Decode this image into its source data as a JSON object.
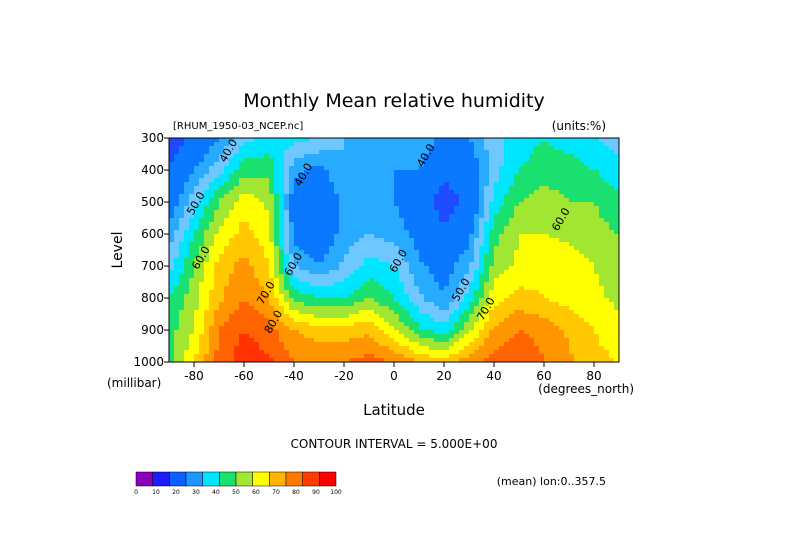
{
  "chart_data": {
    "type": "heatmap",
    "title": "Monthly Mean relative humidity",
    "dataset_label": "[RHUM_1950-03_NCEP.nc]",
    "units_label": "(units:%)",
    "xlabel": "Latitude",
    "x_units": "(degrees_north)",
    "ylabel": "Level",
    "y_units": "(millibar)",
    "xlim": [
      -90,
      90
    ],
    "ylim": [
      1000,
      300
    ],
    "x_ticks": [
      -80,
      -60,
      -40,
      -20,
      0,
      20,
      40,
      60,
      80
    ],
    "y_ticks": [
      300,
      400,
      500,
      600,
      700,
      800,
      900,
      1000
    ],
    "contour_interval_text": "CONTOUR INTERVAL = 5.000E+00",
    "mean_text": "(mean) lon:0..357.5",
    "contour_labels": [
      {
        "text": "40.0",
        "lat": -65,
        "lev": 345
      },
      {
        "text": "40.0",
        "lat": -35,
        "lev": 420
      },
      {
        "text": "40.0",
        "lat": 14,
        "lev": 360
      },
      {
        "text": "50.0",
        "lat": -78,
        "lev": 510
      },
      {
        "text": "60.0",
        "lat": -76,
        "lev": 680
      },
      {
        "text": "60.0",
        "lat": -39,
        "lev": 700
      },
      {
        "text": "60.0",
        "lat": 3,
        "lev": 690
      },
      {
        "text": "60.0",
        "lat": 68,
        "lev": 560
      },
      {
        "text": "50.0",
        "lat": 28,
        "lev": 780
      },
      {
        "text": "70.0",
        "lat": -50,
        "lev": 790
      },
      {
        "text": "70.0",
        "lat": 38,
        "lev": 840
      },
      {
        "text": "80.0",
        "lat": -47,
        "lev": 880
      }
    ],
    "colorbar": {
      "levels": [
        0,
        10,
        20,
        30,
        40,
        50,
        60,
        70,
        80,
        90,
        100
      ],
      "colors": [
        "#8b00bf",
        "#1c1cff",
        "#0a5fff",
        "#1e96ff",
        "#00e5ff",
        "#19e06e",
        "#a0e632",
        "#ffff00",
        "#ffb400",
        "#ff7800",
        "#ff3c00",
        "#ff0000"
      ]
    },
    "color_scale": {
      "interval": 5,
      "bounds": [
        20,
        30,
        40,
        45,
        50,
        55,
        60,
        65,
        70,
        75,
        80,
        85,
        90
      ]
    },
    "rh_field": {
      "lats": [
        -90,
        -80,
        -70,
        -60,
        -50,
        -40,
        -30,
        -20,
        -10,
        0,
        10,
        20,
        30,
        40,
        50,
        60,
        70,
        80,
        90
      ],
      "levels": [
        300,
        400,
        500,
        600,
        700,
        800,
        900,
        1000
      ],
      "values": [
        [
          25,
          32,
          40,
          48,
          52,
          52,
          50,
          45,
          42,
          45,
          45,
          38,
          40,
          48,
          52,
          55,
          52,
          50,
          48
        ],
        [
          30,
          40,
          48,
          58,
          58,
          42,
          38,
          45,
          42,
          40,
          40,
          32,
          35,
          48,
          55,
          58,
          58,
          55,
          52
        ],
        [
          35,
          48,
          60,
          68,
          64,
          36,
          33,
          42,
          43,
          40,
          35,
          26,
          32,
          52,
          60,
          62,
          60,
          60,
          56
        ],
        [
          42,
          55,
          66,
          72,
          67,
          38,
          35,
          42,
          45,
          43,
          38,
          31,
          38,
          58,
          65,
          65,
          64,
          62,
          60
        ],
        [
          48,
          60,
          72,
          77,
          70,
          45,
          40,
          46,
          52,
          50,
          41,
          37,
          44,
          62,
          66,
          68,
          67,
          65,
          63
        ],
        [
          55,
          63,
          74,
          80,
          75,
          58,
          55,
          55,
          60,
          55,
          46,
          40,
          52,
          68,
          72,
          70,
          68,
          66,
          64
        ],
        [
          58,
          65,
          80,
          85,
          82,
          75,
          72,
          72,
          74,
          66,
          56,
          52,
          64,
          76,
          80,
          78,
          74,
          70,
          66
        ],
        [
          58,
          70,
          82,
          88,
          86,
          80,
          80,
          80,
          82,
          80,
          75,
          72,
          78,
          82,
          85,
          80,
          76,
          72,
          70
        ]
      ]
    }
  }
}
